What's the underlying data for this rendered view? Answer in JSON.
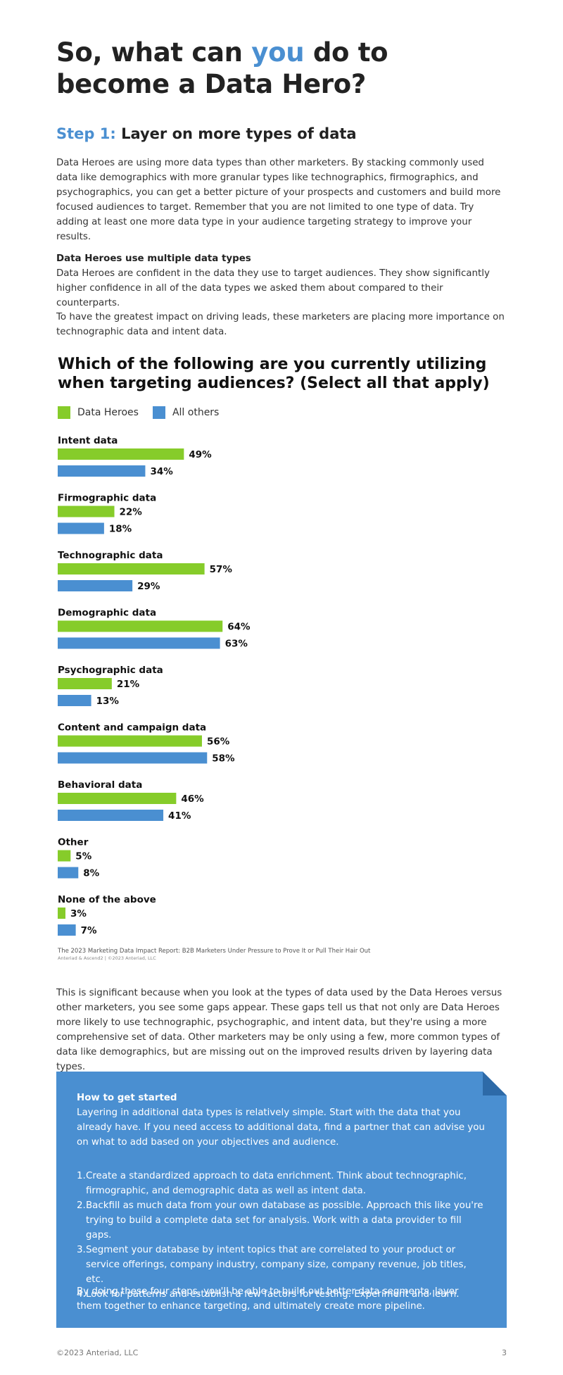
{
  "header": {
    "title_part1": "So, what can ",
    "title_accent": "you",
    "title_part2": " do to become a Data Hero?"
  },
  "step": {
    "label": "Step 1:",
    "title": " Layer on more types of data"
  },
  "intro_paragraph": "Data Heroes are using more data types than other marketers. By stacking commonly used data like demographics with more granular types like technographics, firmographics, and psychographics, you can get a better picture of your prospects and customers and build more focused audiences to target. Remember that you are not limited to one type of data. Try adding at least one more data type in your audience targeting strategy to improve your results.",
  "section": {
    "heading": "Data Heroes use multiple data types",
    "paragraph1": "Data Heroes are confident in the data they use to target audiences. They show significantly higher confidence in all of the data types we asked them about compared to their counterparts.",
    "paragraph2": "To have the greatest impact on driving leads, these marketers are placing more importance on technographic data and intent data."
  },
  "colors": {
    "accent": "#4a8fd1",
    "data_heroes": "#86cc2a",
    "all_others": "#4a8fd1",
    "callout_bg": "#4a8fd1"
  },
  "chart_data": {
    "type": "bar",
    "orientation": "horizontal",
    "title": "Which of the following are you currently utilizing when targeting audiences? (Select all that apply)",
    "categories": [
      "Intent data",
      "Firmographic data",
      "Technographic data",
      "Demographic data",
      "Psychographic data",
      "Content and campaign data",
      "Behavioral data",
      "Other",
      "None of the above"
    ],
    "series": [
      {
        "name": "Data Heroes",
        "color": "#86cc2a",
        "values": [
          49,
          22,
          57,
          64,
          21,
          56,
          46,
          5,
          3
        ]
      },
      {
        "name": "All others",
        "color": "#4a8fd1",
        "values": [
          34,
          18,
          29,
          63,
          13,
          58,
          41,
          8,
          7
        ]
      }
    ],
    "value_suffix": "%",
    "legend": "top-left",
    "grid": false
  },
  "source": {
    "line": "The 2023 Marketing Data Impact Report: B2B Marketers Under Pressure to Prove It or Pull Their Hair Out",
    "sub": "Anteriad & Ascend2 | ©2023 Anteriad, LLC"
  },
  "analysis_paragraph": "This is significant because when you look at the types of data used by the Data Heroes versus other marketers, you see some gaps appear. These gaps tell us that not only are Data Heroes more likely to use technographic, psychographic, and intent data, but they're using a more comprehensive set of data. Other marketers may be only using a few, more common types of data like demographics, but are missing out on the improved results driven by layering data types.",
  "callout": {
    "heading": "How to get started",
    "intro": "Layering in additional data types is relatively simple. Start with the data that you already have. If you need access to additional data, find a partner that can advise you on what to add based on your objectives and audience.",
    "steps": [
      {
        "num": "1.",
        "text": "Create a standardized approach to data enrichment. Think about technographic, firmographic, and demographic data as well as intent data."
      },
      {
        "num": "2.",
        "text": "Backfill as much data from your own database as possible. Approach this like you're trying to build a complete data set for analysis. Work with a data provider to fill gaps."
      },
      {
        "num": "3.",
        "text": "Segment your database by intent topics that are correlated to your product or service offerings, company industry, company size, company revenue, job titles, etc."
      },
      {
        "num": "4.",
        "text": "Look for patterns and establish a few factors for testing. Experiment and learn."
      }
    ],
    "closing": "By doing these four steps, you'll be able to build out better data segments, layer them together to enhance targeting, and ultimately create more pipeline."
  },
  "footer": {
    "copyright": "©2023 Anteriad, LLC",
    "page_number": "3"
  }
}
